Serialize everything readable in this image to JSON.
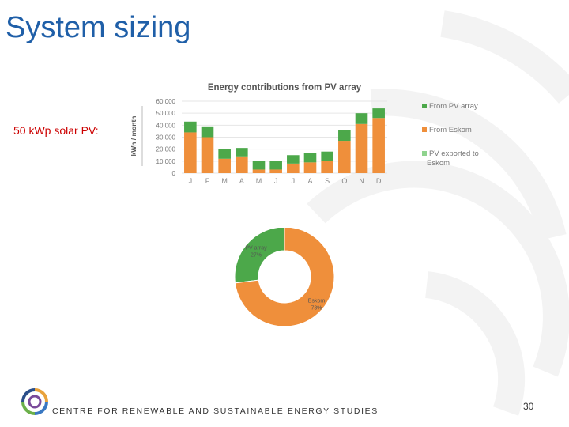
{
  "slide": {
    "title": "System sizing",
    "side_label": "50 kWp solar PV:",
    "organization": "CENTRE FOR RENEWABLE AND SUSTAINABLE ENERGY STUDIES",
    "page_number": "30"
  },
  "colors": {
    "title": "#1f5fa8",
    "side_label": "#cc0000",
    "pv": "#4ca84a",
    "eskom": "#ef8f3b",
    "exported": "#8fd38e",
    "background_swirl": "#f2f2f2"
  },
  "chart_data": [
    {
      "type": "bar",
      "stacked": true,
      "title": "Energy contributions from PV array",
      "xlabel": "",
      "ylabel": "kWh / month",
      "categories": [
        "J",
        "F",
        "M",
        "A",
        "M",
        "J",
        "J",
        "A",
        "S",
        "O",
        "N",
        "D"
      ],
      "ylim": [
        0,
        60000
      ],
      "yticks": [
        "60,000",
        "50,000",
        "40,000",
        "30,000",
        "20,000",
        "10,000",
        "0"
      ],
      "grid": true,
      "legend_position": "right",
      "series": [
        {
          "name": "From Eskom",
          "color": "#ef8f3b",
          "values": [
            34000,
            30000,
            12000,
            14000,
            3000,
            3000,
            8000,
            9000,
            10000,
            27000,
            41000,
            46000
          ]
        },
        {
          "name": "From PV array",
          "color": "#4ca84a",
          "values": [
            9000,
            9000,
            8000,
            7000,
            7000,
            7000,
            7000,
            8000,
            8000,
            9000,
            9000,
            8000
          ]
        },
        {
          "name": "PV exported to Eskom",
          "color": "#8fd38e",
          "values": [
            0,
            0,
            0,
            0,
            0,
            0,
            0,
            0,
            0,
            0,
            0,
            0
          ]
        }
      ]
    },
    {
      "type": "pie",
      "donut": true,
      "title": "",
      "slices": [
        {
          "label": "PV array",
          "value": 27,
          "value_label": "27%",
          "color": "#4ca84a"
        },
        {
          "label": "Eskom",
          "value": 73,
          "value_label": "73%",
          "color": "#ef8f3b"
        }
      ]
    }
  ]
}
